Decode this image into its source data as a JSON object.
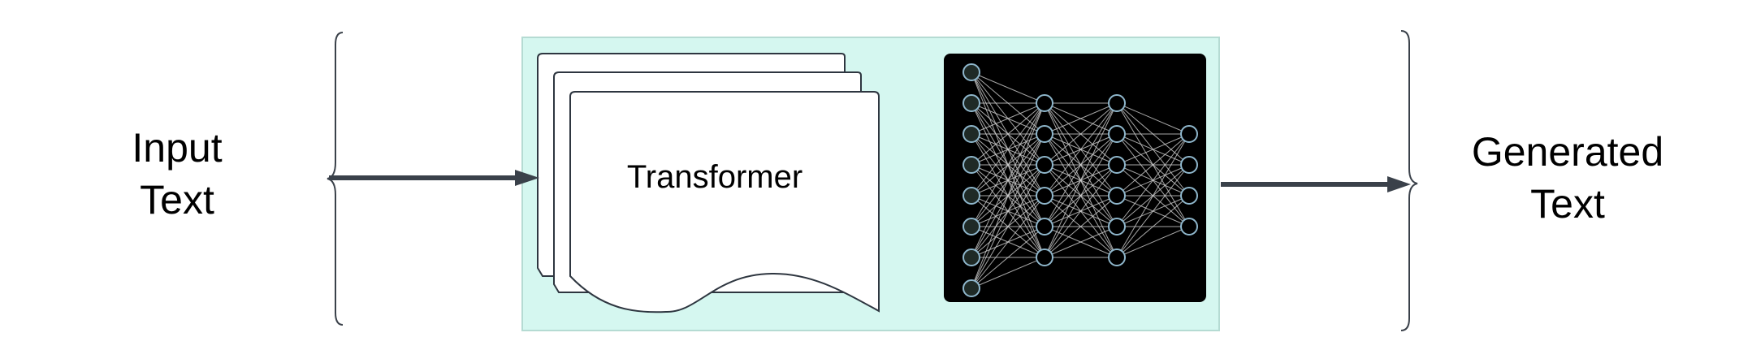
{
  "input_text": {
    "line1": "Input",
    "line2": "Text"
  },
  "model": {
    "label": "Transformer"
  },
  "output_text": {
    "line1": "Generated",
    "line2": "Text"
  },
  "colors": {
    "model_box_fill": "#d5f7f0",
    "model_box_stroke": "#b5dbd3",
    "arrow": "#3a414a",
    "network_background": "#000000",
    "node_stroke": "#8fb7cc",
    "edge": "#cfcfcf"
  },
  "neural_network": {
    "layers": [
      8,
      6,
      6,
      4
    ]
  }
}
